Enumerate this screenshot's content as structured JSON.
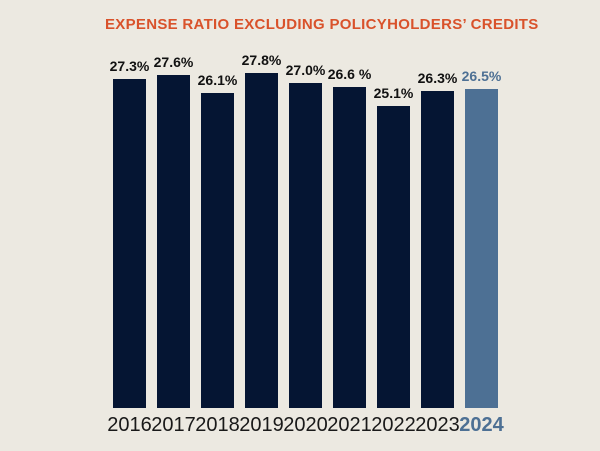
{
  "page": {
    "background_color": "#ECE9E1"
  },
  "chart_data": {
    "type": "bar",
    "title": "EXPENSE RATIO EXCLUDING POLICYHOLDERS’ CREDITS",
    "xlabel": "",
    "ylabel": "",
    "categories": [
      "2016",
      "2017",
      "2018",
      "2019",
      "2020",
      "2021",
      "2022",
      "2023",
      "2024"
    ],
    "values": [
      27.3,
      27.6,
      26.1,
      27.8,
      27.0,
      26.6,
      25.1,
      26.3,
      26.5
    ],
    "value_labels": [
      "27.3%",
      "27.6%",
      "26.1%",
      "27.8%",
      "27.0%",
      "26.6 %",
      "25.1%",
      "26.3%",
      "26.5%"
    ],
    "highlight_index": 8,
    "ylim": [
      0,
      27.8
    ],
    "grid": false,
    "legend": false,
    "axes_hidden": true,
    "colors": {
      "bar": "#051533",
      "highlight_bar": "#4D7094",
      "title": "#D9522B",
      "value_label": "#111111",
      "tick_label": "#191919",
      "background": "#ECE9E1"
    }
  }
}
